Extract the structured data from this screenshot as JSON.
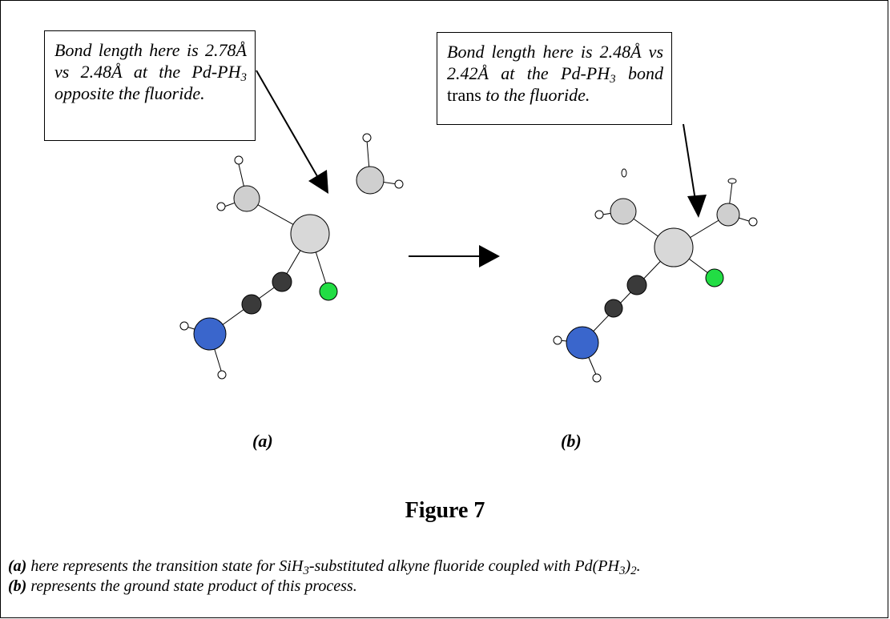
{
  "callouts": [
    {
      "runs": [
        {
          "text": "Bond length here is 2.78Å vs 2.48Å at the Pd-PH",
          "style": "italic"
        },
        {
          "text": "3",
          "style": "italic-sub"
        },
        {
          "text": " opposite the fluoride.",
          "style": "italic"
        }
      ]
    },
    {
      "runs": [
        {
          "text": "Bond length here is 2.48Å vs 2.42Å at the Pd-PH",
          "style": "italic"
        },
        {
          "text": "3",
          "style": "italic-sub"
        },
        {
          "text": " bond",
          "style": "italic"
        },
        {
          "text": " trans",
          "style": "normal"
        },
        {
          "text": " to the fluoride.",
          "style": "italic"
        }
      ]
    }
  ],
  "panel_labels": [
    "(a)",
    "(b)"
  ],
  "figure_title": "Figure 7",
  "caption": [
    {
      "runs": [
        {
          "text": "(a)",
          "style": "bold-italic"
        },
        {
          "text": " here represents the transition state for SiH",
          "style": "italic"
        },
        {
          "text": "3",
          "style": "italic-sub"
        },
        {
          "text": "-substituted alkyne fluoride coupled with Pd(PH",
          "style": "italic"
        },
        {
          "text": "3",
          "style": "italic-sub"
        },
        {
          "text": ")",
          "style": "italic"
        },
        {
          "text": "2",
          "style": "italic-sub"
        },
        {
          "text": ".",
          "style": "italic"
        }
      ]
    },
    {
      "runs": [
        {
          "text": "(b)",
          "style": "bold-italic"
        },
        {
          "text": " represents the ground state product of this process.",
          "style": "italic"
        }
      ]
    }
  ]
}
